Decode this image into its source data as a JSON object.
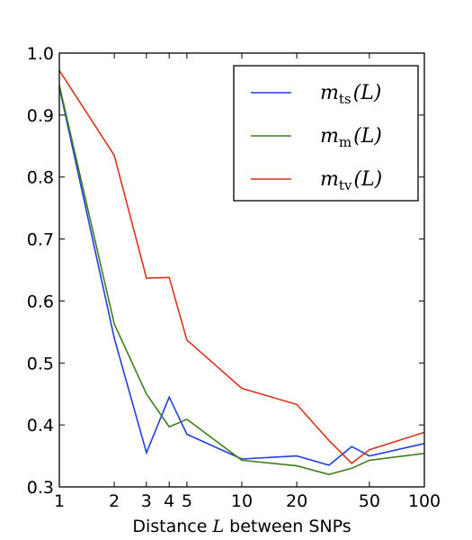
{
  "chart_data": {
    "type": "line",
    "xscale": "log",
    "xlabel_prefix": "Distance ",
    "xlabel_var": "L",
    "xlabel_suffix": " between SNPs",
    "ylabel": "",
    "xlim": [
      1,
      100
    ],
    "ylim": [
      0.3,
      1.0
    ],
    "xticks": [
      {
        "value": 1,
        "label": "1"
      },
      {
        "value": 2,
        "label": "2"
      },
      {
        "value": 3,
        "label": "3"
      },
      {
        "value": 4,
        "label": "4"
      },
      {
        "value": 5,
        "label": "5"
      },
      {
        "value": 10,
        "label": "10"
      },
      {
        "value": 20,
        "label": "20"
      },
      {
        "value": 50,
        "label": "50"
      },
      {
        "value": 100,
        "label": "100"
      }
    ],
    "yticks": [
      {
        "value": 0.3,
        "label": "0.3"
      },
      {
        "value": 0.4,
        "label": "0.4"
      },
      {
        "value": 0.5,
        "label": "0.5"
      },
      {
        "value": 0.6,
        "label": "0.6"
      },
      {
        "value": 0.7,
        "label": "0.7"
      },
      {
        "value": 0.8,
        "label": "0.8"
      },
      {
        "value": 0.9,
        "label": "0.9"
      },
      {
        "value": 1.0,
        "label": "1.0"
      }
    ],
    "legend_position": "upper-right",
    "series": [
      {
        "name": "m_ts(L)",
        "legend_base": "m",
        "legend_sub": "ts",
        "legend_arg": "(L)",
        "color": "#1f3fdd",
        "x": [
          1,
          2,
          3,
          4,
          5,
          10,
          20,
          30,
          40,
          50,
          100
        ],
        "y": [
          0.945,
          0.54,
          0.355,
          0.445,
          0.385,
          0.345,
          0.35,
          0.335,
          0.365,
          0.35,
          0.37
        ]
      },
      {
        "name": "m_m(L)",
        "legend_base": "m",
        "legend_sub": "m",
        "legend_arg": "(L)",
        "color": "#3d7f1d",
        "x": [
          1,
          2,
          3,
          4,
          5,
          10,
          20,
          30,
          40,
          50,
          100
        ],
        "y": [
          0.948,
          0.563,
          0.45,
          0.397,
          0.409,
          0.343,
          0.334,
          0.32,
          0.33,
          0.343,
          0.354
        ]
      },
      {
        "name": "m_tv(L)",
        "legend_base": "m",
        "legend_sub": "tv",
        "legend_arg": "(L)",
        "color": "#d9341c",
        "x": [
          1,
          2,
          3,
          4,
          5,
          10,
          20,
          30,
          40,
          50,
          100
        ],
        "y": [
          0.972,
          0.835,
          0.637,
          0.638,
          0.537,
          0.459,
          0.433,
          0.375,
          0.338,
          0.36,
          0.388
        ]
      }
    ]
  }
}
